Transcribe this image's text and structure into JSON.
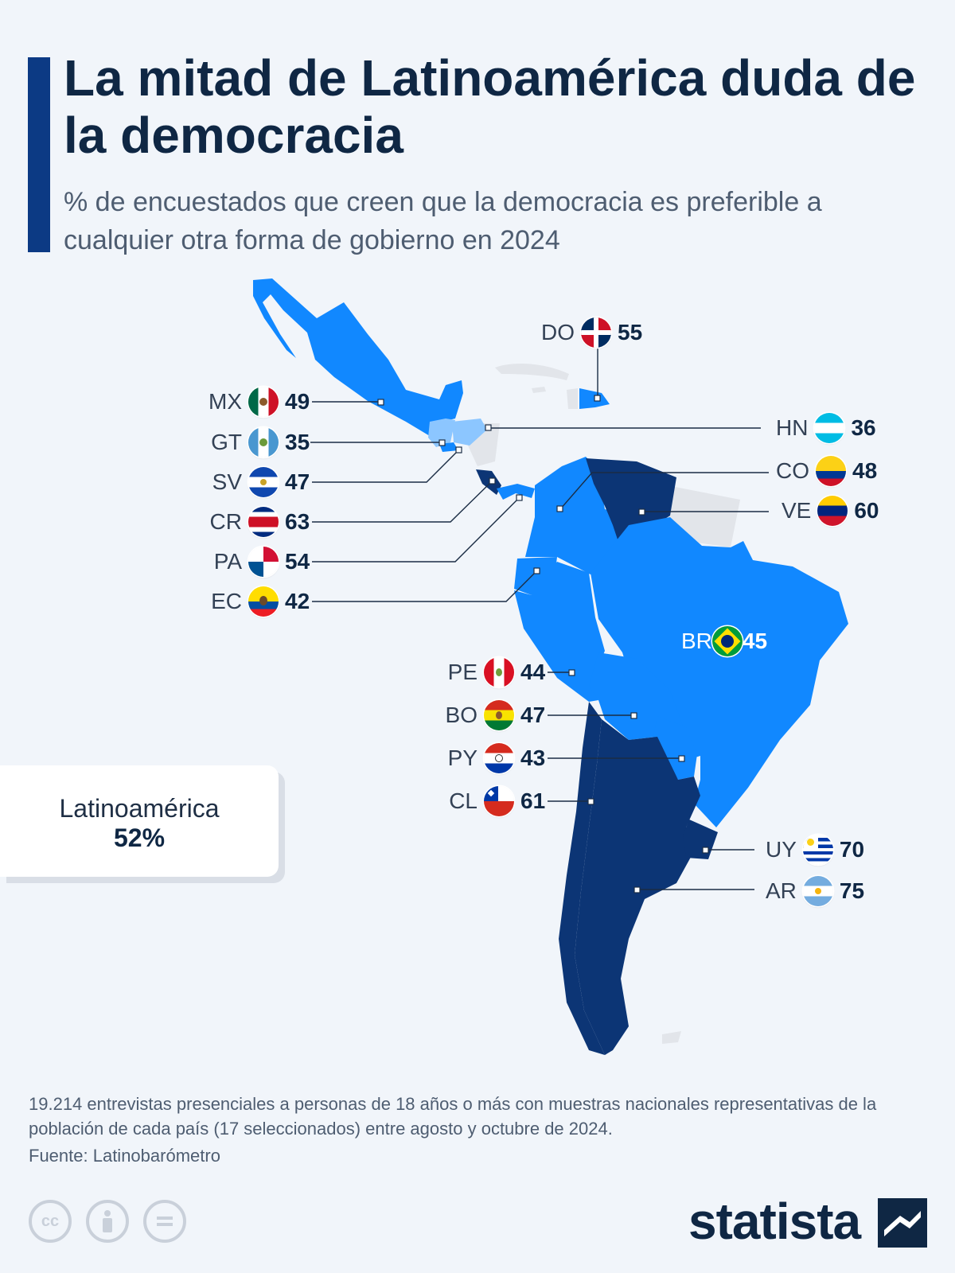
{
  "title": "La mitad de Latinoamérica duda de la democracia",
  "subtitle": "% de encuestados que creen que la democracia es preferible a cualquier otra forma de gobierno en 2024",
  "colors": {
    "high": "#0c3575",
    "mid": "#1188ff",
    "low": "#8cc6ff",
    "no_data": "#e2e5ea",
    "title": "#0f2744",
    "accent": "#0c3a84"
  },
  "countries": [
    {
      "code": "DO",
      "value": 55,
      "flag": "flag-dominican-republic-icon"
    },
    {
      "code": "MX",
      "value": 49,
      "flag": "flag-mexico-icon"
    },
    {
      "code": "GT",
      "value": 35,
      "flag": "flag-guatemala-icon"
    },
    {
      "code": "SV",
      "value": 47,
      "flag": "flag-el-salvador-icon"
    },
    {
      "code": "CR",
      "value": 63,
      "flag": "flag-costa-rica-icon"
    },
    {
      "code": "PA",
      "value": 54,
      "flag": "flag-panama-icon"
    },
    {
      "code": "EC",
      "value": 42,
      "flag": "flag-ecuador-icon"
    },
    {
      "code": "HN",
      "value": 36,
      "flag": "flag-honduras-icon"
    },
    {
      "code": "CO",
      "value": 48,
      "flag": "flag-colombia-icon"
    },
    {
      "code": "VE",
      "value": 60,
      "flag": "flag-venezuela-icon"
    },
    {
      "code": "BR",
      "value": 45,
      "flag": "flag-brazil-icon"
    },
    {
      "code": "PE",
      "value": 44,
      "flag": "flag-peru-icon"
    },
    {
      "code": "BO",
      "value": 47,
      "flag": "flag-bolivia-icon"
    },
    {
      "code": "PY",
      "value": 43,
      "flag": "flag-paraguay-icon"
    },
    {
      "code": "CL",
      "value": 61,
      "flag": "flag-chile-icon"
    },
    {
      "code": "UY",
      "value": 70,
      "flag": "flag-uruguay-icon"
    },
    {
      "code": "AR",
      "value": 75,
      "flag": "flag-argentina-icon"
    }
  ],
  "summary": {
    "label": "Latinoamérica",
    "value": "52%"
  },
  "footnote": "19.214 entrevistas presenciales a personas de 18 años o más con muestras nacionales representativas de la población de cada país (17 seleccionados) entre agosto y octubre de 2024.",
  "source": "Fuente: Latinobarómetro",
  "license_icons": [
    "cc-icon",
    "attribution-icon",
    "no-derivatives-icon"
  ],
  "brand": "statista"
}
